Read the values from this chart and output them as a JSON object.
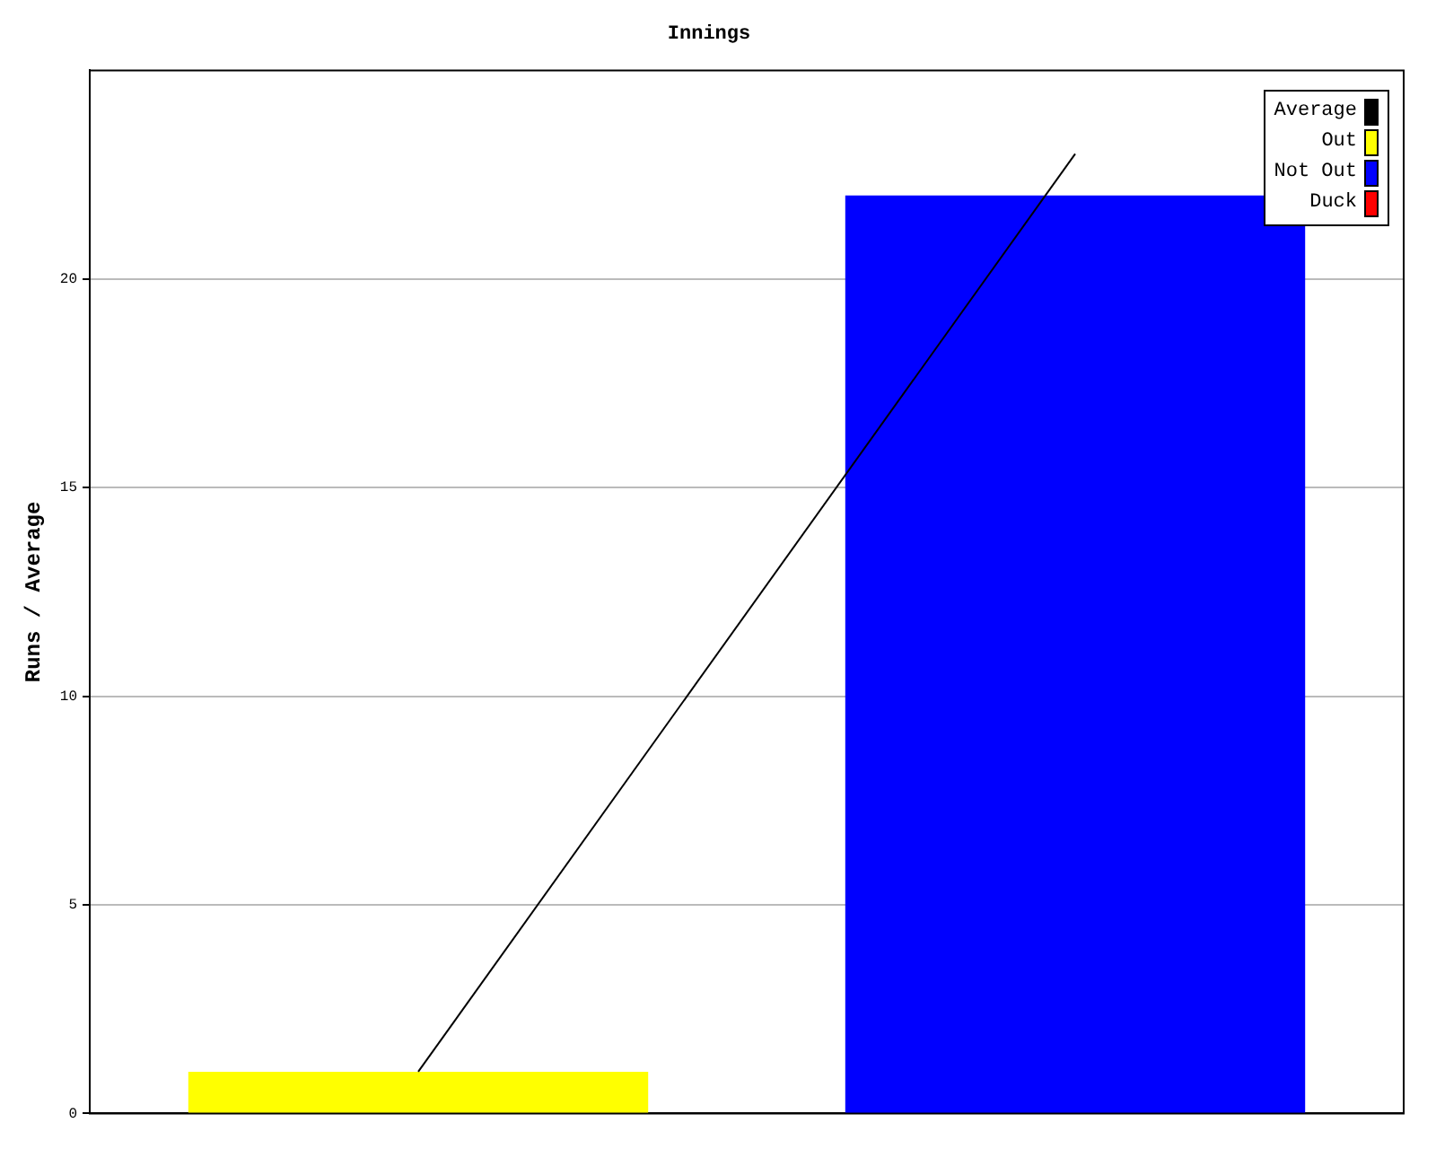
{
  "chart_data": {
    "type": "bar",
    "title": "Innings",
    "ylabel": "Runs / Average",
    "categories": [
      null,
      null
    ],
    "series": [
      {
        "name": "Average",
        "type": "line",
        "color": "#000000",
        "values": [
          1,
          23
        ]
      },
      {
        "name": "Out",
        "color": "#ffff00",
        "values": [
          1,
          null
        ]
      },
      {
        "name": "Not Out",
        "color": "#0000ff",
        "values": [
          null,
          22
        ]
      },
      {
        "name": "Duck",
        "color": "#ff0000",
        "values": [
          null,
          null
        ]
      }
    ],
    "ylim": [
      0,
      25
    ],
    "yticks": [
      0,
      5,
      10,
      15,
      20
    ],
    "grid": "y",
    "legend": "top right",
    "marker": "none"
  }
}
